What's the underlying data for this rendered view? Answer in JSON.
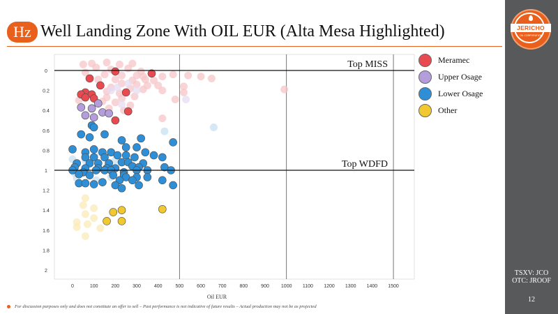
{
  "slide": {
    "badge": "Hz",
    "title": "Well Landing Zone With OIL EUR (Alta Mesa Highlighted)",
    "footer": "For discussion purposes only and does not constitute an offer to sell – Past performance is not indicative of future results – Actual production may not be as projected",
    "ticker_tsxv": "TSXV: JCO",
    "ticker_otc": "OTC: JROOF",
    "page_number": "12",
    "logo_text": "JERICHO",
    "logo_subtext": "OIL CORPORATION",
    "accent_color": "#e8601c",
    "sidebar_color": "#58595b"
  },
  "chart_data": {
    "type": "scatter",
    "title": "",
    "xlabel": "Oil EUR",
    "ylabel": "",
    "xlim": [
      -100,
      1500
    ],
    "ylim": [
      0,
      2.0
    ],
    "y_inverted": true,
    "x_ticks": [
      "0",
      "100",
      "200",
      "300",
      "400",
      "500",
      "600",
      "700",
      "800",
      "900",
      "1000",
      "1100",
      "1200",
      "1300",
      "1400",
      "1500"
    ],
    "y_ticks": [
      "0",
      "0.2",
      "0.4",
      "0.6",
      "0.8",
      "1",
      "1.2",
      "1.4",
      "1.6",
      "1.8",
      "2"
    ],
    "grid_x": [
      500,
      1000,
      1500
    ],
    "reference_lines": [
      {
        "label": "Top MISS",
        "y": 0
      },
      {
        "label": "Top WDFD",
        "y": 1.0
      }
    ],
    "legend_position": "right",
    "series": [
      {
        "name": "Meramec",
        "color": "#e84a4f",
        "faded_color": "#f7c6c8",
        "highlighted": [
          [
            200,
            0.01
          ],
          [
            370,
            0.03
          ],
          [
            80,
            0.08
          ],
          [
            130,
            0.15
          ],
          [
            60,
            0.22
          ],
          [
            40,
            0.24
          ],
          [
            90,
            0.24
          ],
          [
            250,
            0.22
          ],
          [
            60,
            0.27
          ],
          [
            100,
            0.28
          ],
          [
            260,
            0.41
          ],
          [
            200,
            0.5
          ]
        ],
        "background": [
          [
            50,
            -0.06
          ],
          [
            90,
            -0.07
          ],
          [
            160,
            -0.08
          ],
          [
            220,
            -0.06
          ],
          [
            280,
            -0.07
          ],
          [
            110,
            -0.03
          ],
          [
            180,
            -0.01
          ],
          [
            260,
            -0.02
          ],
          [
            320,
            0.01
          ],
          [
            60,
            0.02
          ],
          [
            150,
            0.04
          ],
          [
            230,
            0.05
          ],
          [
            300,
            0.05
          ],
          [
            330,
            0.06
          ],
          [
            420,
            0.06
          ],
          [
            470,
            0.04
          ],
          [
            540,
            0.05
          ],
          [
            600,
            0.06
          ],
          [
            650,
            0.08
          ],
          [
            120,
            0.09
          ],
          [
            200,
            0.09
          ],
          [
            280,
            0.1
          ],
          [
            340,
            0.09
          ],
          [
            380,
            0.1
          ],
          [
            230,
            0.13
          ],
          [
            300,
            0.14
          ],
          [
            350,
            0.15
          ],
          [
            400,
            0.15
          ],
          [
            180,
            0.17
          ],
          [
            270,
            0.18
          ],
          [
            330,
            0.19
          ],
          [
            420,
            0.2
          ],
          [
            520,
            0.16
          ],
          [
            990,
            0.19
          ],
          [
            160,
            0.21
          ],
          [
            220,
            0.23
          ],
          [
            290,
            0.26
          ],
          [
            480,
            0.29
          ],
          [
            520,
            0.22
          ],
          [
            160,
            0.27
          ],
          [
            230,
            0.28
          ],
          [
            140,
            0.31
          ],
          [
            200,
            0.32
          ],
          [
            270,
            0.35
          ],
          [
            30,
            0.3
          ],
          [
            170,
            0.38
          ],
          [
            240,
            0.4
          ],
          [
            420,
            0.48
          ]
        ]
      },
      {
        "name": "Upper Osage",
        "color": "#b39ddb",
        "faded_color": "#e5dcf3",
        "highlighted": [
          [
            120,
            0.33
          ],
          [
            40,
            0.37
          ],
          [
            90,
            0.38
          ],
          [
            140,
            0.42
          ],
          [
            170,
            0.43
          ],
          [
            60,
            0.45
          ],
          [
            100,
            0.47
          ]
        ],
        "background": [
          [
            210,
            0.17
          ],
          [
            260,
            0.13
          ],
          [
            300,
            0.2
          ],
          [
            180,
            0.2
          ],
          [
            530,
            0.29
          ],
          [
            80,
            0.08
          ],
          [
            230,
            0.34
          ]
        ]
      },
      {
        "name": "Lower Osage",
        "color": "#2f8fd6",
        "faded_color": "#c5e0f3",
        "highlighted": [
          [
            90,
            0.55
          ],
          [
            100,
            0.57
          ],
          [
            40,
            0.64
          ],
          [
            150,
            0.64
          ],
          [
            320,
            0.68
          ],
          [
            80,
            0.67
          ],
          [
            230,
            0.7
          ],
          [
            470,
            0.72
          ],
          [
            0,
            0.79
          ],
          [
            60,
            0.82
          ],
          [
            100,
            0.79
          ],
          [
            140,
            0.82
          ],
          [
            180,
            0.82
          ],
          [
            250,
            0.77
          ],
          [
            300,
            0.77
          ],
          [
            340,
            0.82
          ],
          [
            380,
            0.85
          ],
          [
            60,
            0.87
          ],
          [
            100,
            0.87
          ],
          [
            150,
            0.87
          ],
          [
            210,
            0.85
          ],
          [
            250,
            0.85
          ],
          [
            290,
            0.87
          ],
          [
            420,
            0.87
          ],
          [
            20,
            0.93
          ],
          [
            80,
            0.93
          ],
          [
            120,
            0.93
          ],
          [
            170,
            0.93
          ],
          [
            230,
            0.92
          ],
          [
            260,
            0.92
          ],
          [
            330,
            0.93
          ],
          [
            10,
            0.97
          ],
          [
            60,
            0.98
          ],
          [
            120,
            0.98
          ],
          [
            160,
            0.98
          ],
          [
            200,
            0.98
          ],
          [
            280,
            0.96
          ],
          [
            310,
            0.97
          ],
          [
            430,
            0.97
          ],
          [
            0,
            1.0
          ],
          [
            50,
            1.02
          ],
          [
            110,
            1.0
          ],
          [
            150,
            1.0
          ],
          [
            180,
            1.0
          ],
          [
            240,
            1.02
          ],
          [
            300,
            1.0
          ],
          [
            350,
            1.0
          ],
          [
            460,
            1.0
          ],
          [
            30,
            1.04
          ],
          [
            80,
            1.05
          ],
          [
            190,
            1.05
          ],
          [
            240,
            1.05
          ],
          [
            250,
            1.07
          ],
          [
            300,
            1.07
          ],
          [
            350,
            1.07
          ],
          [
            220,
            1.1
          ],
          [
            280,
            1.1
          ],
          [
            420,
            1.1
          ],
          [
            30,
            1.13
          ],
          [
            60,
            1.13
          ],
          [
            100,
            1.14
          ],
          [
            200,
            1.15
          ],
          [
            310,
            1.15
          ],
          [
            470,
            1.15
          ],
          [
            140,
            1.12
          ],
          [
            230,
            1.18
          ]
        ],
        "background": [
          [
            430,
            0.61
          ],
          [
            660,
            0.57
          ],
          [
            0,
            0.89
          ],
          [
            60,
            0.9
          ],
          [
            130,
            0.82
          ],
          [
            200,
            0.9
          ],
          [
            20,
            1.08
          ],
          [
            110,
            1.1
          ],
          [
            10,
            1.03
          ],
          [
            180,
            1.07
          ]
        ]
      },
      {
        "name": "Other",
        "color": "#f2c831",
        "faded_color": "#f9ebb7",
        "highlighted": [
          [
            190,
            1.42
          ],
          [
            230,
            1.4
          ],
          [
            420,
            1.39
          ],
          [
            160,
            1.51
          ],
          [
            230,
            1.51
          ]
        ],
        "background": [
          [
            60,
            1.28
          ],
          [
            50,
            1.35
          ],
          [
            100,
            1.38
          ],
          [
            60,
            1.44
          ],
          [
            100,
            1.48
          ],
          [
            20,
            1.52
          ],
          [
            70,
            1.54
          ],
          [
            130,
            1.58
          ],
          [
            60,
            1.66
          ],
          [
            20,
            1.57
          ]
        ]
      }
    ]
  }
}
